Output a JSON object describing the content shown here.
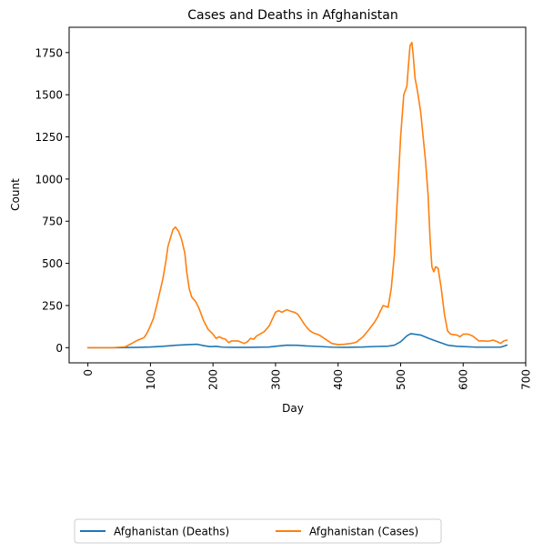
{
  "chart_data": {
    "type": "line",
    "title": "Cases and Deaths in Afghanistan",
    "xlabel": "Day",
    "ylabel": "Count",
    "xlim": [
      -30,
      700
    ],
    "ylim": [
      -90,
      1900
    ],
    "x_ticks": [
      0,
      100,
      200,
      300,
      400,
      500,
      600,
      700
    ],
    "y_ticks": [
      0,
      250,
      500,
      750,
      1000,
      1250,
      1500,
      1750
    ],
    "x_tick_rotation": 90,
    "grid": false,
    "legend_position": "bottom-center",
    "series": [
      {
        "name": "Afghanistan (Deaths)",
        "color": "#1f77b4",
        "points": [
          [
            0,
            0
          ],
          [
            50,
            0
          ],
          [
            80,
            2
          ],
          [
            100,
            4
          ],
          [
            120,
            8
          ],
          [
            140,
            14
          ],
          [
            160,
            18
          ],
          [
            175,
            20
          ],
          [
            185,
            12
          ],
          [
            195,
            6
          ],
          [
            205,
            8
          ],
          [
            215,
            3
          ],
          [
            230,
            2
          ],
          [
            260,
            2
          ],
          [
            290,
            4
          ],
          [
            305,
            10
          ],
          [
            318,
            15
          ],
          [
            335,
            14
          ],
          [
            350,
            10
          ],
          [
            370,
            7
          ],
          [
            390,
            3
          ],
          [
            410,
            2
          ],
          [
            440,
            4
          ],
          [
            460,
            7
          ],
          [
            480,
            9
          ],
          [
            490,
            15
          ],
          [
            500,
            35
          ],
          [
            510,
            70
          ],
          [
            516,
            83
          ],
          [
            522,
            80
          ],
          [
            532,
            75
          ],
          [
            545,
            55
          ],
          [
            560,
            35
          ],
          [
            575,
            15
          ],
          [
            590,
            8
          ],
          [
            610,
            5
          ],
          [
            620,
            3
          ],
          [
            640,
            3
          ],
          [
            660,
            3
          ],
          [
            670,
            15
          ]
        ]
      },
      {
        "name": "Afghanistan (Cases)",
        "color": "#ff7f0e",
        "points": [
          [
            0,
            0
          ],
          [
            40,
            0
          ],
          [
            60,
            5
          ],
          [
            70,
            25
          ],
          [
            80,
            45
          ],
          [
            90,
            60
          ],
          [
            95,
            90
          ],
          [
            100,
            130
          ],
          [
            105,
            175
          ],
          [
            110,
            250
          ],
          [
            115,
            330
          ],
          [
            120,
            410
          ],
          [
            125,
            520
          ],
          [
            128,
            600
          ],
          [
            132,
            650
          ],
          [
            136,
            700
          ],
          [
            140,
            715
          ],
          [
            145,
            690
          ],
          [
            150,
            640
          ],
          [
            155,
            560
          ],
          [
            158,
            450
          ],
          [
            162,
            350
          ],
          [
            166,
            300
          ],
          [
            172,
            275
          ],
          [
            178,
            230
          ],
          [
            185,
            160
          ],
          [
            192,
            110
          ],
          [
            200,
            80
          ],
          [
            205,
            55
          ],
          [
            210,
            65
          ],
          [
            215,
            55
          ],
          [
            220,
            50
          ],
          [
            225,
            30
          ],
          [
            230,
            40
          ],
          [
            240,
            40
          ],
          [
            250,
            25
          ],
          [
            255,
            35
          ],
          [
            260,
            55
          ],
          [
            265,
            50
          ],
          [
            270,
            70
          ],
          [
            275,
            80
          ],
          [
            282,
            95
          ],
          [
            290,
            130
          ],
          [
            295,
            170
          ],
          [
            300,
            210
          ],
          [
            305,
            220
          ],
          [
            310,
            210
          ],
          [
            318,
            225
          ],
          [
            325,
            215
          ],
          [
            330,
            210
          ],
          [
            335,
            200
          ],
          [
            340,
            175
          ],
          [
            345,
            145
          ],
          [
            350,
            120
          ],
          [
            355,
            100
          ],
          [
            362,
            85
          ],
          [
            370,
            75
          ],
          [
            380,
            50
          ],
          [
            390,
            25
          ],
          [
            400,
            18
          ],
          [
            410,
            20
          ],
          [
            420,
            25
          ],
          [
            425,
            28
          ],
          [
            430,
            35
          ],
          [
            440,
            65
          ],
          [
            450,
            110
          ],
          [
            458,
            150
          ],
          [
            463,
            180
          ],
          [
            468,
            220
          ],
          [
            472,
            250
          ],
          [
            476,
            245
          ],
          [
            480,
            240
          ],
          [
            485,
            350
          ],
          [
            490,
            550
          ],
          [
            495,
            900
          ],
          [
            500,
            1250
          ],
          [
            505,
            1500
          ],
          [
            510,
            1550
          ],
          [
            512,
            1650
          ],
          [
            515,
            1790
          ],
          [
            518,
            1810
          ],
          [
            520,
            1740
          ],
          [
            523,
            1600
          ],
          [
            527,
            1520
          ],
          [
            532,
            1400
          ],
          [
            536,
            1250
          ],
          [
            540,
            1100
          ],
          [
            544,
            900
          ],
          [
            547,
            650
          ],
          [
            550,
            480
          ],
          [
            553,
            450
          ],
          [
            556,
            480
          ],
          [
            560,
            470
          ],
          [
            565,
            350
          ],
          [
            570,
            200
          ],
          [
            575,
            100
          ],
          [
            580,
            80
          ],
          [
            590,
            75
          ],
          [
            595,
            65
          ],
          [
            600,
            80
          ],
          [
            608,
            80
          ],
          [
            615,
            70
          ],
          [
            620,
            55
          ],
          [
            625,
            40
          ],
          [
            635,
            40
          ],
          [
            640,
            38
          ],
          [
            648,
            45
          ],
          [
            655,
            35
          ],
          [
            660,
            25
          ],
          [
            665,
            40
          ],
          [
            670,
            45
          ]
        ]
      }
    ]
  }
}
